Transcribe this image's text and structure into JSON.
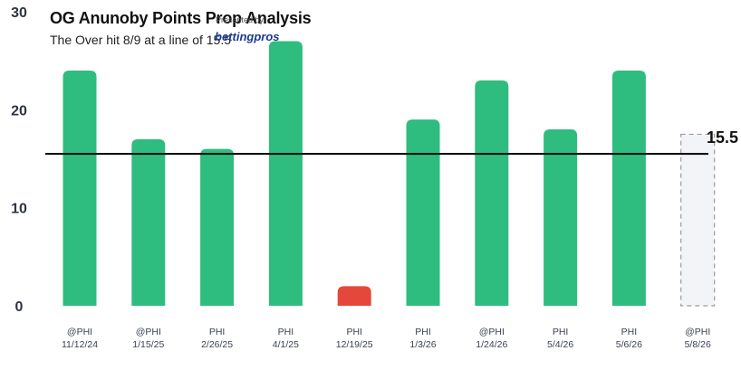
{
  "chart_data": {
    "type": "bar",
    "title": "OG Anunoby Points Prop Analysis",
    "subtitle": "The Over hit 8/9 at a line of 15.5",
    "categories": [
      [
        "@PHI",
        "11/12/24"
      ],
      [
        "@PHI",
        "1/15/25"
      ],
      [
        "PHI",
        "2/26/25"
      ],
      [
        "PHI",
        "4/1/25"
      ],
      [
        "PHI",
        "12/19/25"
      ],
      [
        "PHI",
        "1/3/26"
      ],
      [
        "@PHI",
        "1/24/26"
      ],
      [
        "PHI",
        "5/4/26"
      ],
      [
        "PHI",
        "5/6/26"
      ],
      [
        "@PHI",
        "5/8/26"
      ]
    ],
    "values": [
      24,
      17,
      16,
      27,
      2,
      19,
      23,
      18,
      24,
      null
    ],
    "line": 15.5,
    "line_label": "15.5",
    "yticks": [
      0,
      10,
      20,
      30
    ],
    "ylim": [
      0,
      30
    ],
    "colors": {
      "over": "#2ebd7e",
      "under": "#e5483a",
      "line": "#111111",
      "pending_fill": "#f3f4f8",
      "pending_stroke": "#9a9a9a"
    }
  },
  "branding": {
    "presented_by": "Presented by",
    "logo_text": "bettingpros"
  }
}
